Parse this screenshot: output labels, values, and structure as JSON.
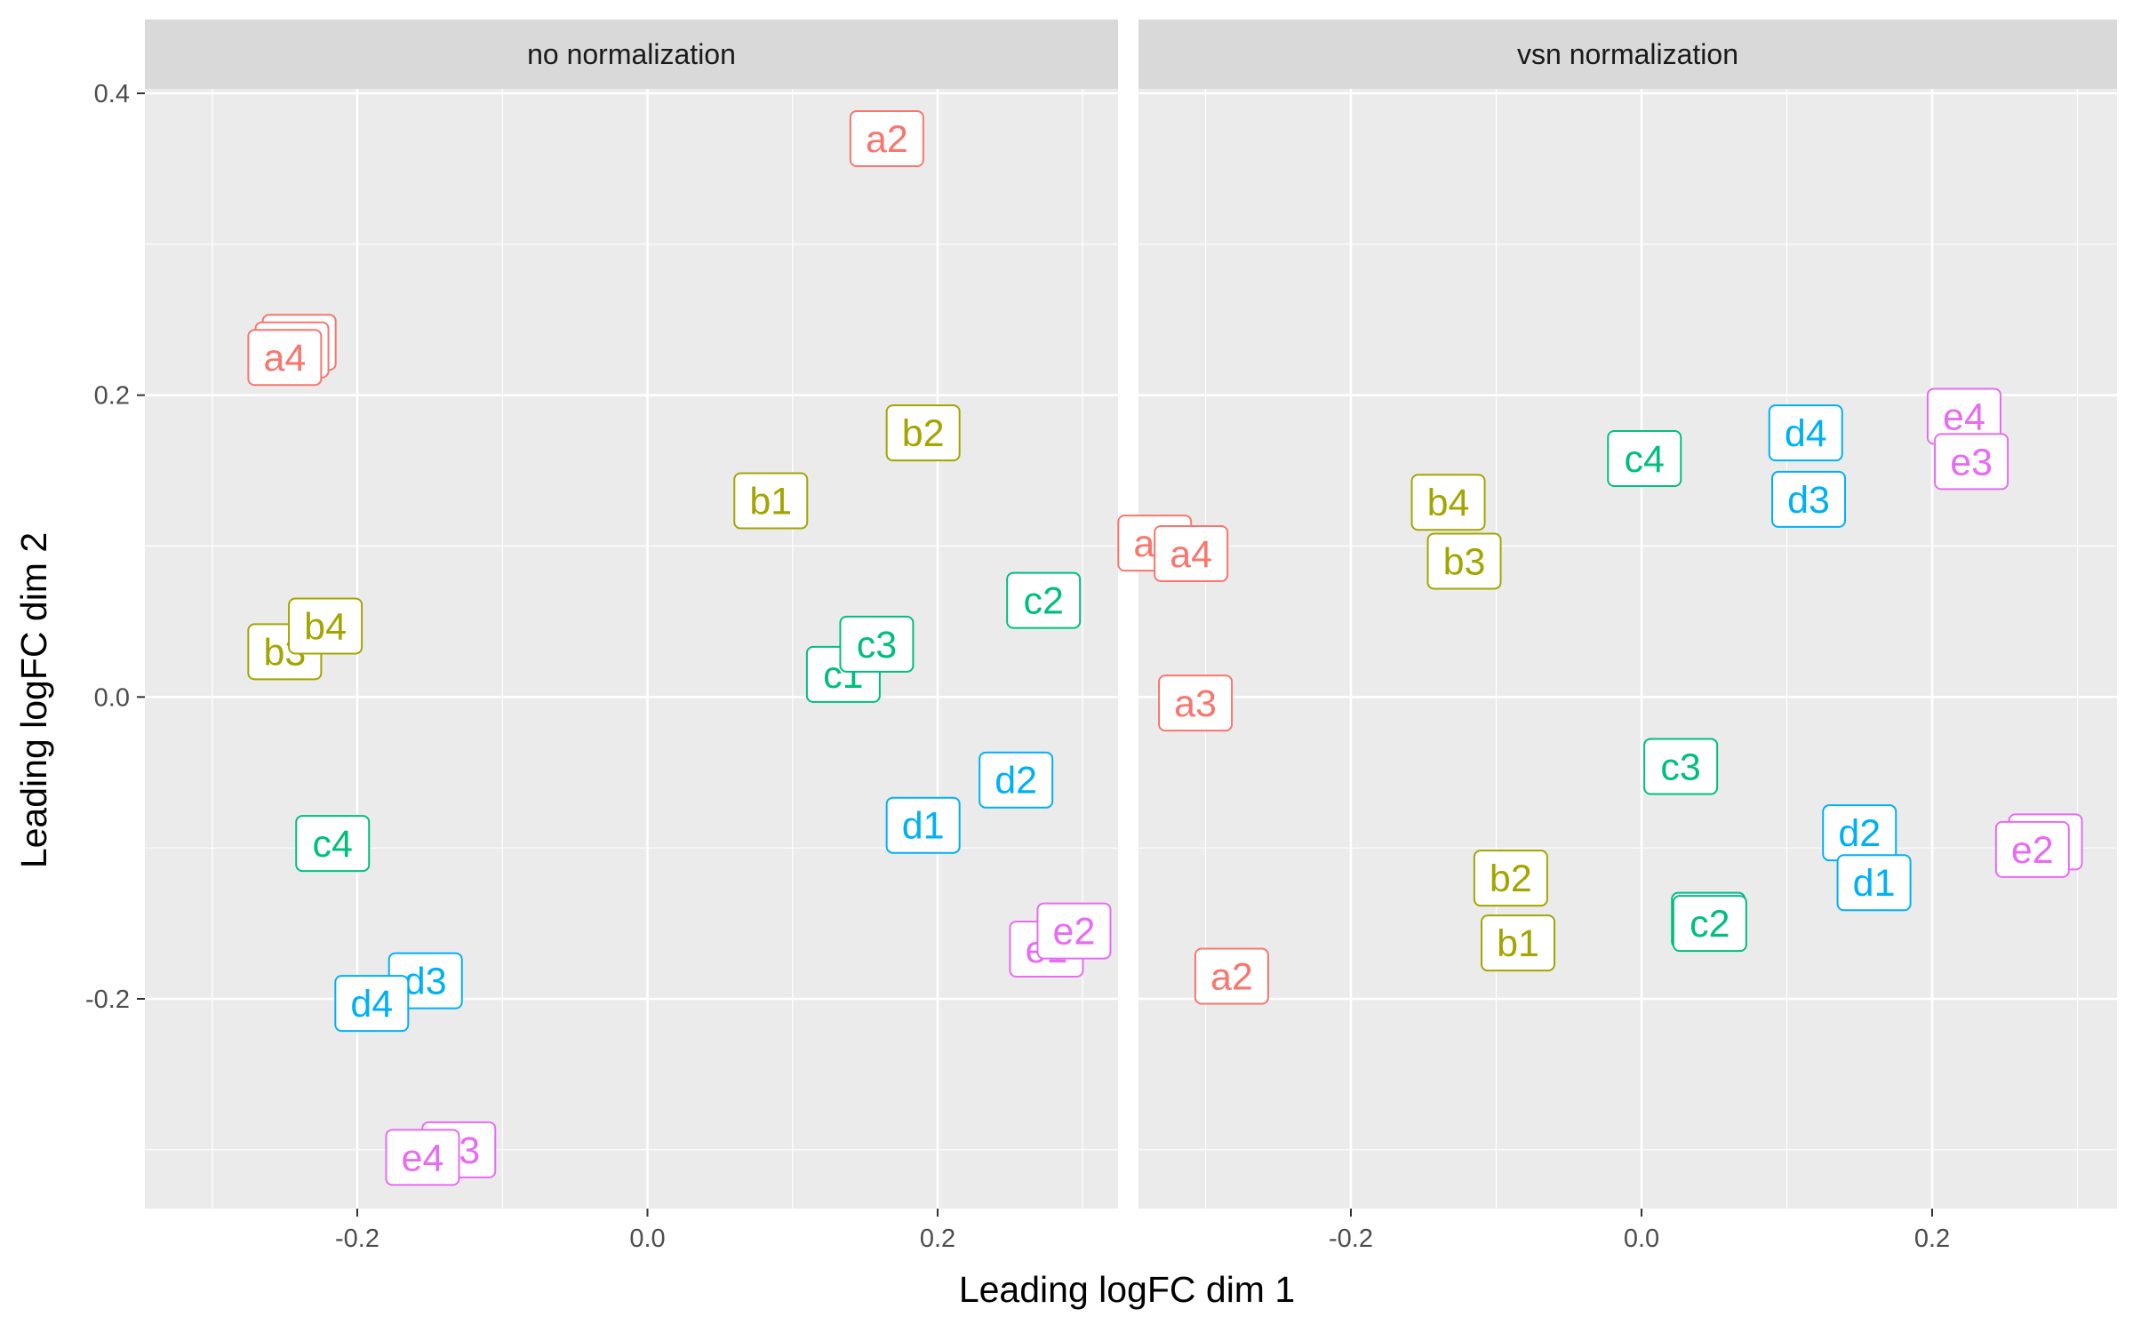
{
  "chart_data": {
    "type": "scatter",
    "xlabel": "Leading logFC dim 1",
    "ylabel": "Leading logFC dim 2",
    "xlim": [
      -0.34,
      0.33
    ],
    "ylim": [
      -0.34,
      0.41
    ],
    "x_ticks": [
      -0.2,
      0.0,
      0.2
    ],
    "x_tick_labels": [
      "-0.2",
      "0.0",
      "0.2"
    ],
    "y_ticks": [
      0.4,
      0.2,
      0.0,
      -0.2
    ],
    "y_tick_labels": [
      "0.4",
      "0.2",
      "0.0",
      "-0.2"
    ],
    "grid": true,
    "legend": "none",
    "group_colors": {
      "a": "#F8766D",
      "b": "#A3A500",
      "c": "#00BF7D",
      "d": "#00B0F6",
      "e": "#E76BF3"
    },
    "panels": [
      {
        "title": "no normalization",
        "points": [
          {
            "label": "a1",
            "group": "a",
            "x": -0.24,
            "y": 0.235
          },
          {
            "label": "a3",
            "group": "a",
            "x": -0.245,
            "y": 0.23
          },
          {
            "label": "a4",
            "group": "a",
            "x": -0.25,
            "y": 0.225
          },
          {
            "label": "a2",
            "group": "a",
            "x": 0.165,
            "y": 0.37
          },
          {
            "label": "b2",
            "group": "b",
            "x": 0.19,
            "y": 0.175
          },
          {
            "label": "b1",
            "group": "b",
            "x": 0.085,
            "y": 0.13
          },
          {
            "label": "b3",
            "group": "b",
            "x": -0.25,
            "y": 0.03
          },
          {
            "label": "b4",
            "group": "b",
            "x": -0.222,
            "y": 0.047
          },
          {
            "label": "c2",
            "group": "c",
            "x": 0.273,
            "y": 0.064
          },
          {
            "label": "c1",
            "group": "c",
            "x": 0.135,
            "y": 0.015
          },
          {
            "label": "c3",
            "group": "c",
            "x": 0.158,
            "y": 0.035
          },
          {
            "label": "c4",
            "group": "c",
            "x": -0.217,
            "y": -0.097
          },
          {
            "label": "d2",
            "group": "d",
            "x": 0.254,
            "y": -0.055
          },
          {
            "label": "d1",
            "group": "d",
            "x": 0.19,
            "y": -0.085
          },
          {
            "label": "d3",
            "group": "d",
            "x": -0.153,
            "y": -0.188
          },
          {
            "label": "d4",
            "group": "d",
            "x": -0.19,
            "y": -0.203
          },
          {
            "label": "e1",
            "group": "e",
            "x": 0.275,
            "y": -0.167
          },
          {
            "label": "e2",
            "group": "e",
            "x": 0.294,
            "y": -0.155
          },
          {
            "label": "e3",
            "group": "e",
            "x": -0.13,
            "y": -0.3
          },
          {
            "label": "e4",
            "group": "e",
            "x": -0.155,
            "y": -0.305
          }
        ]
      },
      {
        "title": "vsn normalization",
        "points": [
          {
            "label": "a1",
            "group": "a",
            "x": -0.335,
            "y": 0.102
          },
          {
            "label": "a4",
            "group": "a",
            "x": -0.31,
            "y": 0.095
          },
          {
            "label": "a3",
            "group": "a",
            "x": -0.307,
            "y": -0.004
          },
          {
            "label": "a2",
            "group": "a",
            "x": -0.282,
            "y": -0.185
          },
          {
            "label": "b4",
            "group": "b",
            "x": -0.133,
            "y": 0.129
          },
          {
            "label": "b3",
            "group": "b",
            "x": -0.122,
            "y": 0.09
          },
          {
            "label": "b2",
            "group": "b",
            "x": -0.09,
            "y": -0.12
          },
          {
            "label": "b1",
            "group": "b",
            "x": -0.085,
            "y": -0.163
          },
          {
            "label": "c4",
            "group": "c",
            "x": 0.002,
            "y": 0.158
          },
          {
            "label": "c3",
            "group": "c",
            "x": 0.027,
            "y": -0.046
          },
          {
            "label": "c1",
            "group": "c",
            "x": 0.046,
            "y": -0.148
          },
          {
            "label": "c2",
            "group": "c",
            "x": 0.047,
            "y": -0.15
          },
          {
            "label": "d4",
            "group": "d",
            "x": 0.113,
            "y": 0.175
          },
          {
            "label": "d3",
            "group": "d",
            "x": 0.115,
            "y": 0.131
          },
          {
            "label": "d2",
            "group": "d",
            "x": 0.15,
            "y": -0.09
          },
          {
            "label": "d1",
            "group": "d",
            "x": 0.16,
            "y": -0.123
          },
          {
            "label": "e4",
            "group": "e",
            "x": 0.222,
            "y": 0.186
          },
          {
            "label": "e3",
            "group": "e",
            "x": 0.227,
            "y": 0.156
          },
          {
            "label": "e1",
            "group": "e",
            "x": 0.278,
            "y": -0.096
          },
          {
            "label": "e2",
            "group": "e",
            "x": 0.269,
            "y": -0.101
          }
        ]
      }
    ]
  }
}
